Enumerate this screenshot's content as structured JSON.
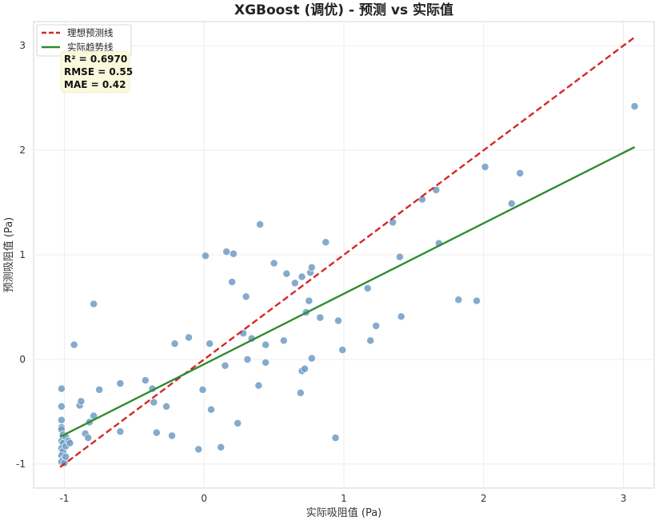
{
  "chart_data": {
    "type": "scatter",
    "title": "XGBoost (调优) - 预测 vs 实际值",
    "xlabel": "实际吸阻值 (Pa)",
    "ylabel": "预测吸阻值 (Pa)",
    "xlim": [
      -1.22,
      3.22
    ],
    "ylim": [
      -1.23,
      3.23
    ],
    "xticks": [
      -1,
      0,
      1,
      2,
      3
    ],
    "yticks": [
      -1,
      0,
      1,
      2,
      3
    ],
    "grid": true,
    "legend": {
      "placement": "top-left",
      "entries": [
        {
          "label": "理想预测线",
          "color": "#d62728",
          "style": "dashed"
        },
        {
          "label": "实际趋势线",
          "color": "#2e8b2e",
          "style": "solid"
        }
      ]
    },
    "stats": [
      "R² = 0.6970",
      "RMSE = 0.55",
      "MAE = 0.42"
    ],
    "ideal_line": {
      "x": [
        -1.03,
        3.08
      ],
      "y": [
        -1.03,
        3.08
      ],
      "color": "#d62728"
    },
    "trend_line": {
      "x": [
        -1.03,
        3.08
      ],
      "y": [
        -0.74,
        2.03
      ],
      "color": "#2e8b2e"
    },
    "point_color": "#6f9cc4",
    "points": [
      [
        -1.02,
        -0.28
      ],
      [
        -1.02,
        -0.45
      ],
      [
        -1.02,
        -0.58
      ],
      [
        -1.02,
        -0.65
      ],
      [
        -1.02,
        -0.67
      ],
      [
        -1.01,
        -0.72
      ],
      [
        -1.02,
        -0.78
      ],
      [
        -1.01,
        -0.8
      ],
      [
        -1.02,
        -0.85
      ],
      [
        -1.01,
        -0.88
      ],
      [
        -1.02,
        -0.92
      ],
      [
        -1.01,
        -0.96
      ],
      [
        -1.02,
        -0.98
      ],
      [
        -1.0,
        -0.99
      ],
      [
        -0.99,
        -0.93
      ],
      [
        -0.99,
        -0.83
      ],
      [
        -0.99,
        -0.74
      ],
      [
        -0.97,
        -0.78
      ],
      [
        -0.96,
        -0.8
      ],
      [
        -0.93,
        0.14
      ],
      [
        -0.89,
        -0.44
      ],
      [
        -0.88,
        -0.4
      ],
      [
        -0.85,
        -0.71
      ],
      [
        -0.83,
        -0.75
      ],
      [
        -0.82,
        -0.6
      ],
      [
        -0.79,
        -0.54
      ],
      [
        -0.79,
        0.53
      ],
      [
        -0.75,
        -0.29
      ],
      [
        -0.6,
        -0.23
      ],
      [
        -0.6,
        -0.69
      ],
      [
        -0.42,
        -0.2
      ],
      [
        -0.37,
        -0.28
      ],
      [
        -0.36,
        -0.41
      ],
      [
        -0.34,
        -0.7
      ],
      [
        -0.27,
        -0.45
      ],
      [
        -0.23,
        -0.73
      ],
      [
        -0.21,
        0.15
      ],
      [
        -0.11,
        0.21
      ],
      [
        -0.04,
        -0.86
      ],
      [
        -0.01,
        -0.29
      ],
      [
        0.01,
        0.99
      ],
      [
        0.04,
        0.15
      ],
      [
        0.05,
        -0.48
      ],
      [
        0.12,
        -0.84
      ],
      [
        0.15,
        -0.06
      ],
      [
        0.16,
        1.03
      ],
      [
        0.2,
        0.74
      ],
      [
        0.21,
        1.01
      ],
      [
        0.24,
        -0.61
      ],
      [
        0.28,
        0.25
      ],
      [
        0.3,
        0.6
      ],
      [
        0.31,
        0.0
      ],
      [
        0.34,
        0.2
      ],
      [
        0.39,
        -0.25
      ],
      [
        0.4,
        1.29
      ],
      [
        0.44,
        0.14
      ],
      [
        0.44,
        -0.03
      ],
      [
        0.5,
        0.92
      ],
      [
        0.57,
        0.18
      ],
      [
        0.59,
        0.82
      ],
      [
        0.65,
        0.73
      ],
      [
        0.69,
        -0.32
      ],
      [
        0.7,
        0.79
      ],
      [
        0.7,
        -0.11
      ],
      [
        0.72,
        -0.09
      ],
      [
        0.73,
        0.45
      ],
      [
        0.75,
        0.56
      ],
      [
        0.76,
        0.83
      ],
      [
        0.77,
        0.88
      ],
      [
        0.77,
        0.01
      ],
      [
        0.83,
        0.4
      ],
      [
        0.87,
        1.12
      ],
      [
        0.94,
        -0.75
      ],
      [
        0.96,
        0.37
      ],
      [
        0.99,
        0.09
      ],
      [
        1.17,
        0.68
      ],
      [
        1.19,
        0.18
      ],
      [
        1.23,
        0.32
      ],
      [
        1.35,
        1.31
      ],
      [
        1.4,
        0.98
      ],
      [
        1.41,
        0.41
      ],
      [
        1.56,
        1.53
      ],
      [
        1.66,
        1.62
      ],
      [
        1.68,
        1.11
      ],
      [
        1.82,
        0.57
      ],
      [
        1.95,
        0.56
      ],
      [
        2.01,
        1.84
      ],
      [
        2.2,
        1.49
      ],
      [
        2.26,
        1.78
      ],
      [
        3.08,
        2.42
      ]
    ]
  }
}
